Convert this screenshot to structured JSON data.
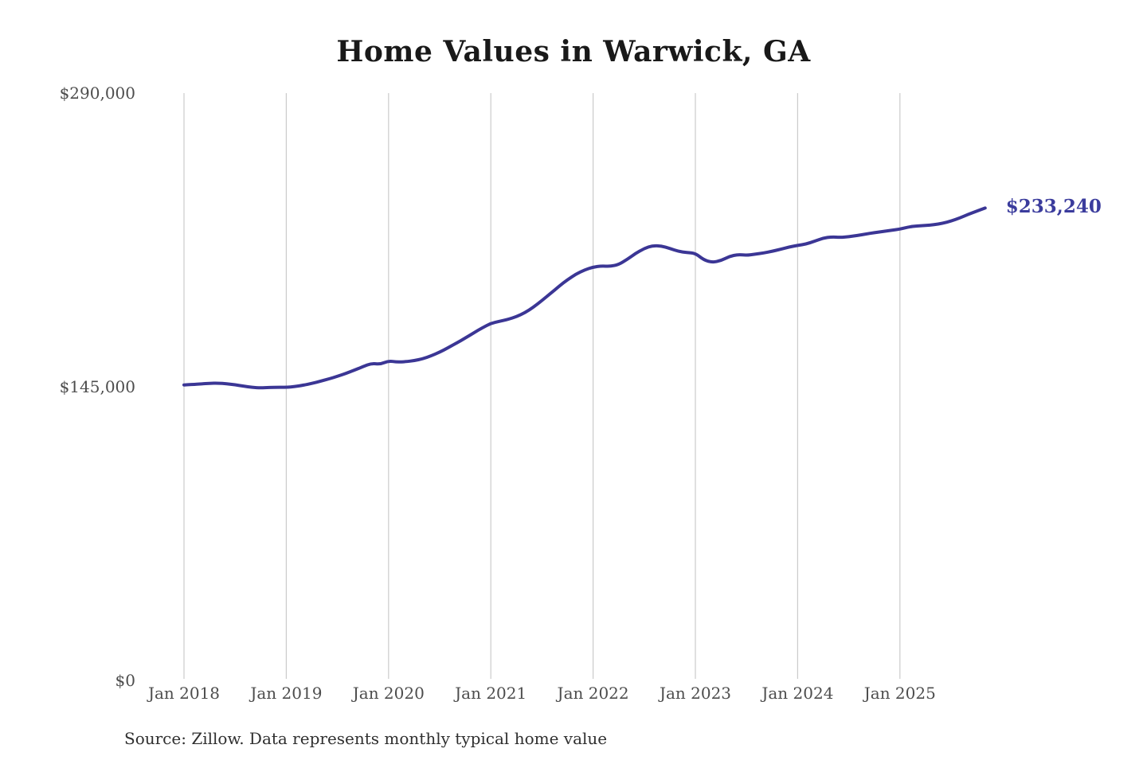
{
  "header": {
    "title": "Home Values in Warwick, GA"
  },
  "annotation": {
    "end_label": "$233,240"
  },
  "source": {
    "text": "Source: Zillow. Data represents monthly typical home value"
  },
  "colors": {
    "line": "#3b3695",
    "annotation": "#3b3c9d",
    "grid": "#cbcbcb",
    "axis_text": "#4d4d4d",
    "title_text": "#191919",
    "source_text": "#2f2f2f",
    "background": "#ffffff"
  },
  "chart_data": {
    "type": "line",
    "title": "Home Values in Warwick, GA",
    "xlabel": "",
    "ylabel": "",
    "ylim": [
      0,
      290000
    ],
    "grid": "vertical-only",
    "legend": "none",
    "x_tick_labels": [
      "Jan 2018",
      "Jan 2019",
      "Jan 2020",
      "Jan 2021",
      "Jan 2022",
      "Jan 2023",
      "Jan 2024",
      "Jan 2025"
    ],
    "x_tick_interval_months": 12,
    "y_ticks": [
      {
        "label": "$0",
        "value": 0
      },
      {
        "label": "$145,000",
        "value": 145000
      },
      {
        "label": "$290,000",
        "value": 290000
      }
    ],
    "series": [
      {
        "name": "Monthly typical home value",
        "start_month": "Jan 2018",
        "interval": "month",
        "values": [
          145900,
          146100,
          146400,
          146700,
          146800,
          146500,
          146000,
          145300,
          144700,
          144500,
          144600,
          144800,
          144700,
          145100,
          145800,
          146700,
          147700,
          148900,
          150200,
          151600,
          153200,
          155000,
          156600,
          156100,
          157800,
          157200,
          157400,
          157900,
          158800,
          160300,
          162100,
          164300,
          166600,
          169100,
          171600,
          174100,
          176300,
          177300,
          178300,
          179600,
          181600,
          184300,
          187600,
          191100,
          194600,
          197900,
          200700,
          202700,
          204100,
          204700,
          204400,
          205300,
          207900,
          210900,
          213300,
          214700,
          214500,
          213300,
          211900,
          211300,
          210900,
          207600,
          206400,
          207300,
          209400,
          210300,
          209900,
          210500,
          211100,
          211900,
          212900,
          214000,
          214800,
          215500,
          216900,
          218400,
          219000,
          218700,
          219100,
          219700,
          220400,
          221100,
          221700,
          222300,
          222800,
          223900,
          224400,
          224600,
          225000,
          225700,
          226800,
          228300,
          230100,
          231700,
          233240
        ]
      }
    ],
    "end_annotation": {
      "label": "$233,240",
      "value": 233240
    }
  }
}
